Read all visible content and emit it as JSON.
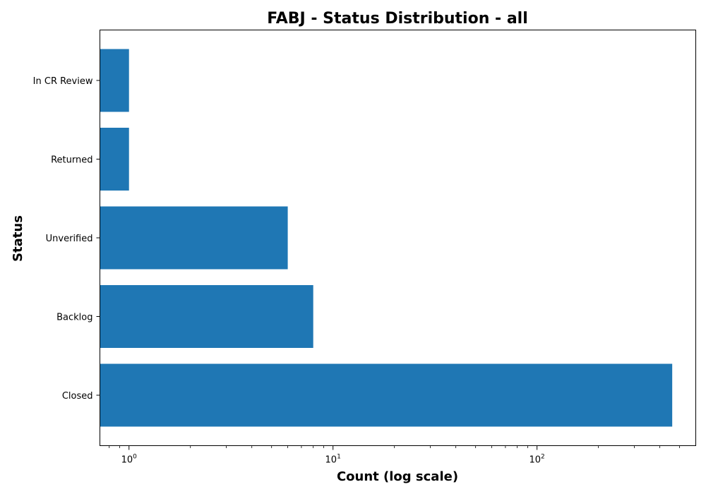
{
  "chart_data": {
    "type": "bar",
    "orientation": "horizontal",
    "title": "FABJ - Status Distribution - all",
    "xlabel": "Count (log scale)",
    "ylabel": "Status",
    "x_scale": "log",
    "xlim": [
      0.72,
      600
    ],
    "categories": [
      "Closed",
      "Backlog",
      "Unverified",
      "Returned",
      "In CR Review"
    ],
    "values": [
      460,
      8,
      6,
      1,
      1
    ],
    "x_major_ticks": [
      {
        "base": "10",
        "exp": "0",
        "value": 1
      },
      {
        "base": "10",
        "exp": "1",
        "value": 10
      },
      {
        "base": "10",
        "exp": "2",
        "value": 100
      }
    ],
    "bar_color": "#1f77b4",
    "grid": false,
    "legend": "none"
  }
}
